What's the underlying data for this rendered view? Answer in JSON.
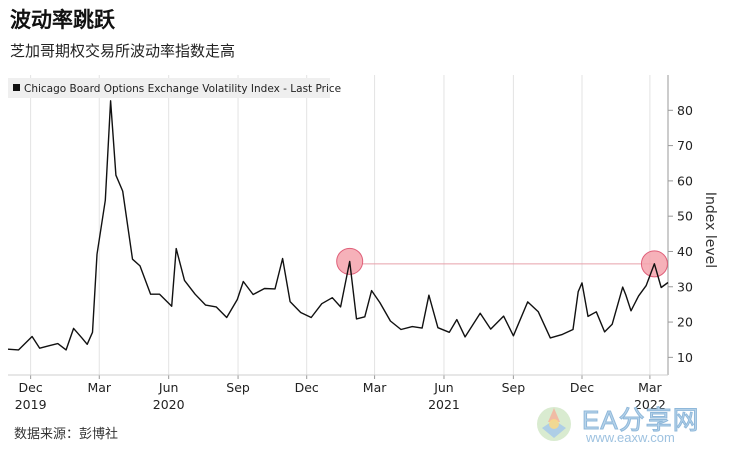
{
  "header": {
    "title": "波动率跳跃",
    "subtitle": "芝加哥期权交易所波动率指数走高"
  },
  "footer": {
    "source": "数据来源：彭博社"
  },
  "watermark": {
    "name": "EA分享网",
    "url": "www.eaxw.com"
  },
  "colors": {
    "line": "#111111",
    "grid": "#e3e3e3",
    "highlight_fill": "#f5a3ad",
    "highlight_stroke": "#e0607a",
    "reference_line": "#e8a0aa"
  },
  "chart_data": {
    "type": "line",
    "title": "",
    "xlabel": "",
    "ylabel": "Index level",
    "ylim": [
      5,
      90
    ],
    "yticks": [
      10,
      20,
      30,
      40,
      50,
      60,
      70,
      80
    ],
    "grid": "vertical",
    "legend": "top-left",
    "x_range": [
      "2019-11-01",
      "2022-03-25"
    ],
    "x_tick_labels": [
      {
        "label": "Dec",
        "year": "2019",
        "date": "2019-12-01"
      },
      {
        "label": "Mar",
        "year": "",
        "date": "2020-03-01"
      },
      {
        "label": "Jun",
        "year": "2020",
        "date": "2020-06-01"
      },
      {
        "label": "Sep",
        "year": "",
        "date": "2020-09-01"
      },
      {
        "label": "Dec",
        "year": "",
        "date": "2020-12-01"
      },
      {
        "label": "Mar",
        "year": "",
        "date": "2021-03-01"
      },
      {
        "label": "Jun",
        "year": "2021",
        "date": "2021-06-01"
      },
      {
        "label": "Sep",
        "year": "",
        "date": "2021-09-01"
      },
      {
        "label": "Dec",
        "year": "",
        "date": "2021-12-01"
      },
      {
        "label": "Mar",
        "year": "2022",
        "date": "2022-03-01"
      }
    ],
    "series": [
      {
        "name": "Chicago Board Options Exchange Volatility Index - Last Price",
        "points": [
          [
            "2019-11-01",
            12.3
          ],
          [
            "2019-11-15",
            12.1
          ],
          [
            "2019-12-03",
            15.9
          ],
          [
            "2019-12-13",
            12.6
          ],
          [
            "2019-12-27",
            13.4
          ],
          [
            "2020-01-06",
            13.9
          ],
          [
            "2020-01-17",
            12.1
          ],
          [
            "2020-01-27",
            18.2
          ],
          [
            "2020-02-07",
            15.5
          ],
          [
            "2020-02-14",
            13.7
          ],
          [
            "2020-02-21",
            17.1
          ],
          [
            "2020-02-27",
            39.2
          ],
          [
            "2020-03-09",
            54.5
          ],
          [
            "2020-03-16",
            82.7
          ],
          [
            "2020-03-23",
            61.6
          ],
          [
            "2020-04-01",
            57.1
          ],
          [
            "2020-04-14",
            37.8
          ],
          [
            "2020-04-24",
            35.9
          ],
          [
            "2020-05-08",
            27.9
          ],
          [
            "2020-05-20",
            27.9
          ],
          [
            "2020-06-05",
            24.5
          ],
          [
            "2020-06-11",
            40.8
          ],
          [
            "2020-06-22",
            31.8
          ],
          [
            "2020-07-06",
            27.9
          ],
          [
            "2020-07-20",
            24.8
          ],
          [
            "2020-08-03",
            24.3
          ],
          [
            "2020-08-17",
            21.3
          ],
          [
            "2020-08-31",
            26.4
          ],
          [
            "2020-09-08",
            31.5
          ],
          [
            "2020-09-21",
            27.8
          ],
          [
            "2020-10-06",
            29.5
          ],
          [
            "2020-10-20",
            29.4
          ],
          [
            "2020-10-30",
            38.0
          ],
          [
            "2020-11-09",
            25.8
          ],
          [
            "2020-11-23",
            22.7
          ],
          [
            "2020-12-07",
            21.3
          ],
          [
            "2020-12-21",
            25.2
          ],
          [
            "2021-01-04",
            26.9
          ],
          [
            "2021-01-15",
            24.3
          ],
          [
            "2021-01-27",
            37.2
          ],
          [
            "2021-02-05",
            20.9
          ],
          [
            "2021-02-16",
            21.5
          ],
          [
            "2021-02-25",
            28.9
          ],
          [
            "2021-03-08",
            25.5
          ],
          [
            "2021-03-22",
            20.3
          ],
          [
            "2021-04-05",
            17.9
          ],
          [
            "2021-04-20",
            18.7
          ],
          [
            "2021-05-03",
            18.3
          ],
          [
            "2021-05-12",
            27.6
          ],
          [
            "2021-05-24",
            18.4
          ],
          [
            "2021-06-08",
            17.1
          ],
          [
            "2021-06-18",
            20.7
          ],
          [
            "2021-06-29",
            15.8
          ],
          [
            "2021-07-19",
            22.5
          ],
          [
            "2021-08-02",
            18.0
          ],
          [
            "2021-08-19",
            21.7
          ],
          [
            "2021-09-01",
            16.1
          ],
          [
            "2021-09-20",
            25.7
          ],
          [
            "2021-10-04",
            22.9
          ],
          [
            "2021-10-20",
            15.5
          ],
          [
            "2021-11-05",
            16.5
          ],
          [
            "2021-11-19",
            17.9
          ],
          [
            "2021-11-26",
            28.6
          ],
          [
            "2021-12-01",
            31.1
          ],
          [
            "2021-12-09",
            21.6
          ],
          [
            "2021-12-20",
            22.9
          ],
          [
            "2021-12-31",
            17.2
          ],
          [
            "2022-01-10",
            19.4
          ],
          [
            "2022-01-24",
            29.9
          ],
          [
            "2022-01-28",
            27.7
          ],
          [
            "2022-02-04",
            23.2
          ],
          [
            "2022-02-14",
            27.4
          ],
          [
            "2022-02-24",
            30.3
          ],
          [
            "2022-03-07",
            36.5
          ],
          [
            "2022-03-16",
            29.8
          ],
          [
            "2022-03-25",
            31.2
          ]
        ]
      }
    ],
    "highlights": [
      {
        "date": "2021-01-27",
        "value": 37.2
      },
      {
        "date": "2022-03-07",
        "value": 36.5
      }
    ],
    "reference_line": {
      "value": 36.5,
      "from": "2021-02-12",
      "to": "2022-03-07"
    }
  }
}
